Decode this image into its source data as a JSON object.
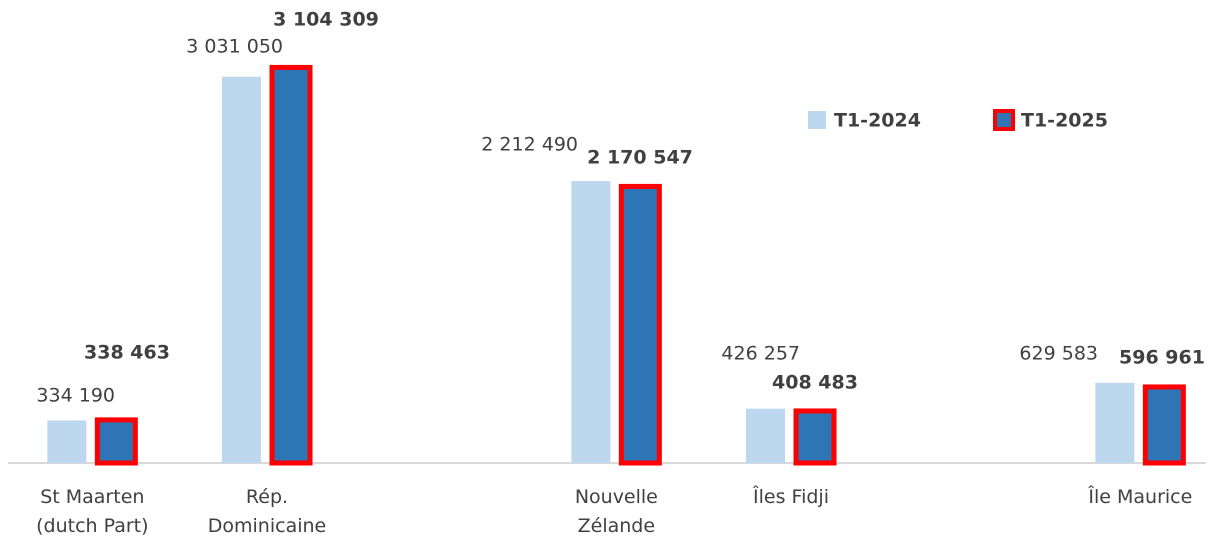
{
  "chart_data": {
    "type": "bar",
    "categories": [
      "St Maarten (dutch Part)",
      "Rép. Dominicaine",
      null,
      "Nouvelle Zélande",
      "Îles Fidji",
      null,
      "Île Maurice"
    ],
    "series": [
      {
        "name": "T1-2024",
        "color": "#bdd7ee",
        "values": [
          334190,
          3031050,
          null,
          2212490,
          426257,
          null,
          629583
        ],
        "value_labels": [
          "334 190",
          "3 031 050",
          null,
          "2 212 490",
          "426 257",
          null,
          "629 583"
        ]
      },
      {
        "name": "T1-2025",
        "color": "#2e75b6",
        "border": "#ff0000",
        "values": [
          338463,
          3104309,
          null,
          2170547,
          408483,
          null,
          596961
        ],
        "value_labels": [
          "338 463",
          "3 104 309",
          null,
          "2 170 547",
          "408 483",
          null,
          "596 961"
        ]
      }
    ],
    "ylim": [
      0,
      3500000
    ],
    "legend": "top-right"
  }
}
